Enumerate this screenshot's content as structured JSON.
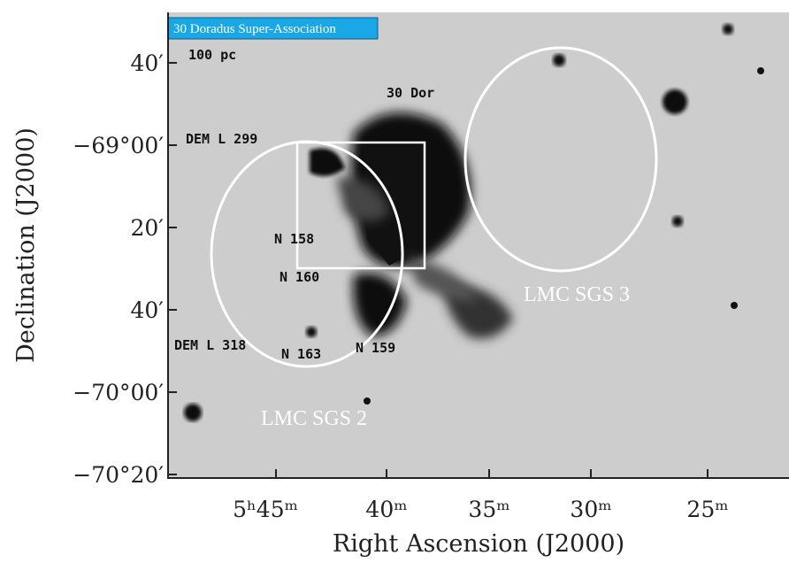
{
  "badge": "30 Doradus Super-Association",
  "scale_bar": "100 pc",
  "labels": [
    "30 Dor",
    "DEM L 299",
    "N 158",
    "N 160",
    "DEM L 318",
    "N 163",
    "N 159"
  ],
  "shells": [
    "LMC SGS 3",
    "LMC SGS 2"
  ],
  "y_axis": {
    "title": "Declination (J2000)",
    "ticks": [
      "40′",
      "−69°00′",
      "20′",
      "40′",
      "−70°00′",
      "−70°20′"
    ]
  },
  "x_axis": {
    "title": "Right Ascension (J2000)",
    "ticks": [
      "5ʰ45ᵐ",
      "40ᵐ",
      "35ᵐ",
      "30ᵐ",
      "25ᵐ"
    ]
  }
}
